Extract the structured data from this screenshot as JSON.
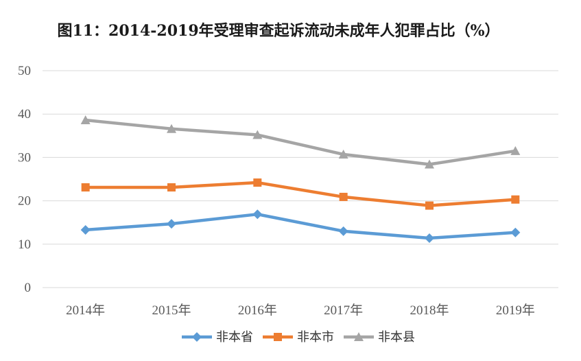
{
  "chart_data": {
    "type": "line",
    "title": "图11：2014-2019年受理审查起诉流动未成年人犯罪占比（%）",
    "categories": [
      "2014年",
      "2015年",
      "2016年",
      "2017年",
      "2018年",
      "2019年"
    ],
    "series": [
      {
        "name": "非本省",
        "color": "#5B9BD5",
        "marker": "diamond",
        "values": [
          13.3,
          14.7,
          16.9,
          13.0,
          11.4,
          12.7
        ]
      },
      {
        "name": "非本市",
        "color": "#ED7D31",
        "marker": "square",
        "values": [
          23.1,
          23.1,
          24.2,
          20.9,
          18.9,
          20.3
        ]
      },
      {
        "name": "非本县",
        "color": "#A5A5A5",
        "marker": "triangle",
        "values": [
          38.6,
          36.6,
          35.2,
          30.7,
          28.4,
          31.5
        ]
      }
    ],
    "ylim": [
      0,
      50
    ],
    "yticks": [
      0,
      10,
      20,
      30,
      40,
      50
    ],
    "grid": true,
    "legend": "bottom"
  }
}
